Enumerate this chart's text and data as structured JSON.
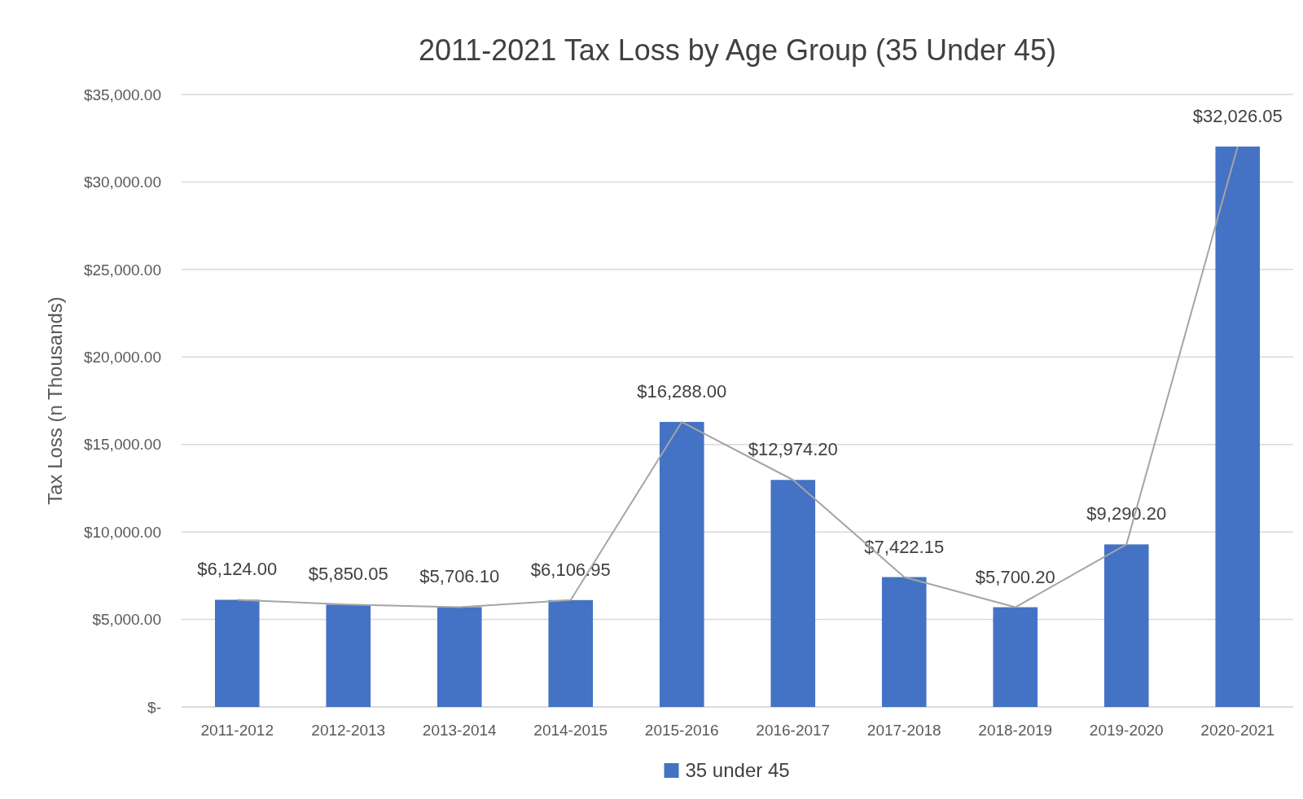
{
  "chart_data": {
    "type": "bar",
    "title": "2011-2021 Tax Loss by Age Group (35 Under 45)",
    "ylabel": "Tax Loss (n Thousands)",
    "categories": [
      "2011-2012",
      "2012-2013",
      "2013-2014",
      "2014-2015",
      "2015-2016",
      "2016-2017",
      "2017-2018",
      "2018-2019",
      "2019-2020",
      "2020-2021"
    ],
    "series": [
      {
        "name": "35 under 45",
        "color": "#4472c4",
        "values": [
          6124.0,
          5850.05,
          5706.1,
          6106.95,
          16288.0,
          12974.2,
          7422.15,
          5700.2,
          9290.2,
          32026.05
        ],
        "value_labels": [
          "$6,124.00",
          "$5,850.05",
          "$5,706.10",
          "$6,106.95",
          "$16,288.00",
          "$12,974.20",
          "$7,422.15",
          "$5,700.20",
          "$9,290.20",
          "$32,026.05"
        ]
      },
      {
        "type": "line",
        "color": "#a5a5a5",
        "values": [
          6124.0,
          5850.05,
          5706.1,
          6106.95,
          16288.0,
          12974.2,
          7422.15,
          5700.2,
          9290.2,
          32026.05
        ]
      }
    ],
    "ylim": [
      0,
      35000
    ],
    "yticks": [
      {
        "value": 0,
        "label": "$-"
      },
      {
        "value": 5000,
        "label": "$5,000.00"
      },
      {
        "value": 10000,
        "label": "$10,000.00"
      },
      {
        "value": 15000,
        "label": "$15,000.00"
      },
      {
        "value": 20000,
        "label": "$20,000.00"
      },
      {
        "value": 25000,
        "label": "$25,000.00"
      },
      {
        "value": 30000,
        "label": "$30,000.00"
      },
      {
        "value": 35000,
        "label": "$35,000.00"
      }
    ],
    "grid": "y",
    "legend": "bottom"
  }
}
